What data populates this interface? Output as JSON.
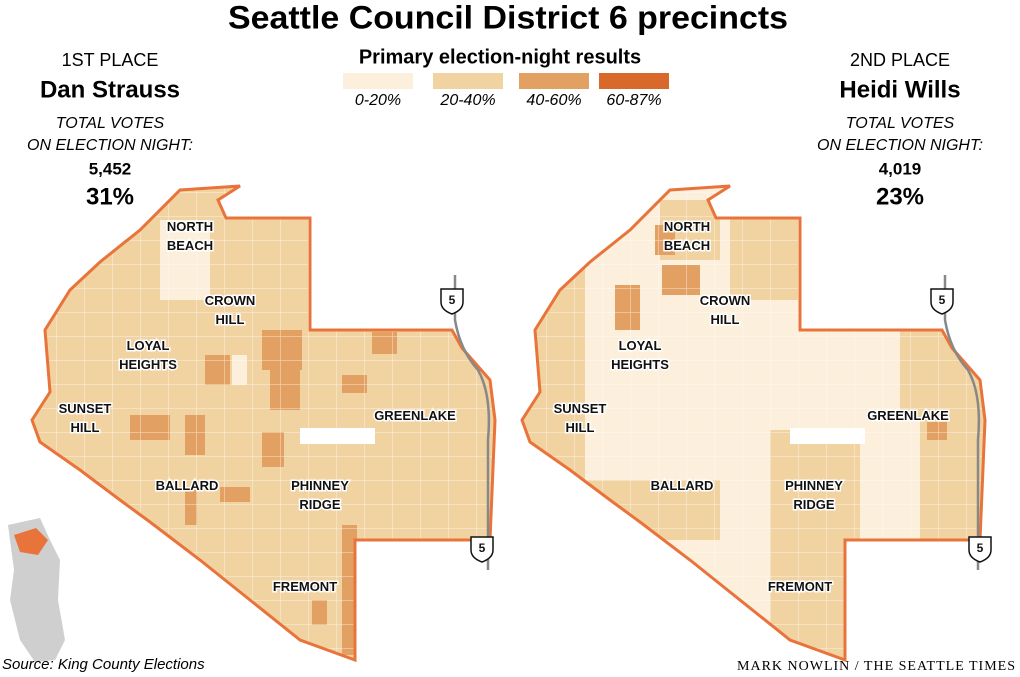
{
  "title": "Seattle Council District 6 precincts",
  "legend": {
    "title": "Primary election-night results",
    "items": [
      {
        "label": "0-20%",
        "color": "#fcefdc"
      },
      {
        "label": "20-40%",
        "color": "#f1d2a1"
      },
      {
        "label": "40-60%",
        "color": "#e3a063"
      },
      {
        "label": "60-87%",
        "color": "#d8692b"
      }
    ]
  },
  "candidates": [
    {
      "place": "1ST PLACE",
      "name": "Dan Strauss",
      "votes_label": [
        "TOTAL VOTES",
        "ON ELECTION NIGHT:"
      ],
      "votes": "5,452",
      "percent": "31%"
    },
    {
      "place": "2ND PLACE",
      "name": "Heidi Wills",
      "votes_label": [
        "TOTAL VOTES",
        "ON ELECTION NIGHT:"
      ],
      "votes": "4,019",
      "percent": "23%"
    }
  ],
  "neighborhoods": [
    [
      "NORTH",
      "BEACH"
    ],
    [
      "CROWN",
      "HILL"
    ],
    [
      "LOYAL",
      "HEIGHTS"
    ],
    [
      "SUNSET",
      "HILL"
    ],
    [
      "BALLARD"
    ],
    [
      "PHINNEY",
      "RIDGE"
    ],
    [
      "FREMONT"
    ],
    [
      "GREENLAKE"
    ]
  ],
  "interstate": "5",
  "source": "Source: King County Elections",
  "credit": "MARK NOWLIN / THE SEATTLE TIMES"
}
